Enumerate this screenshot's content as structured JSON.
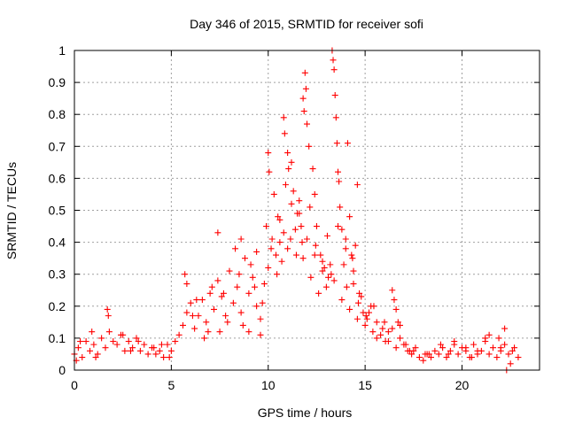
{
  "chart_data": {
    "type": "scatter",
    "title": "Day 346 of 2015, SRMTID for receiver sofi",
    "xlabel": "GPS time / hours",
    "ylabel": "SRMTID / TECUs",
    "xlim": [
      0,
      24
    ],
    "ylim": [
      0,
      1
    ],
    "xticks": [
      0,
      5,
      10,
      15,
      20
    ],
    "xtick_labels": [
      "0",
      "5",
      "10",
      "15",
      "20"
    ],
    "yticks": [
      0,
      0.1,
      0.2,
      0.3,
      0.4,
      0.5,
      0.6,
      0.7,
      0.8,
      0.9,
      1
    ],
    "ytick_labels": [
      "0",
      "0.1",
      "0.2",
      "0.3",
      "0.4",
      "0.5",
      "0.6",
      "0.7",
      "0.8",
      "0.9",
      "1"
    ],
    "grid": true,
    "marker": "+",
    "series": [
      {
        "name": "SRMTID",
        "color": "#ff0000",
        "x": [
          0.0,
          0.2,
          0.4,
          0.6,
          0.8,
          1.0,
          1.2,
          1.4,
          1.6,
          1.8,
          2.0,
          2.2,
          2.4,
          2.6,
          2.8,
          3.0,
          3.2,
          3.4,
          3.6,
          3.8,
          4.0,
          4.2,
          4.4,
          4.6,
          4.8,
          5.0,
          5.2,
          5.4,
          5.6,
          5.8,
          6.0,
          6.2,
          6.4,
          6.6,
          6.8,
          7.0,
          7.2,
          7.4,
          7.6,
          7.8,
          8.0,
          8.2,
          8.4,
          8.6,
          8.8,
          9.0,
          9.2,
          9.4,
          9.6,
          9.8,
          10.0,
          10.2,
          10.4,
          10.6,
          10.8,
          11.0,
          11.2,
          11.4,
          11.6,
          11.8,
          12.0,
          12.2,
          12.4,
          12.6,
          12.8,
          13.0,
          13.2,
          13.4,
          13.6,
          13.8,
          14.0,
          14.2,
          14.4,
          14.6,
          14.8,
          15.0,
          15.2,
          15.4,
          15.6,
          15.8,
          16.0,
          16.2,
          16.4,
          16.6,
          16.8,
          17.0,
          17.2,
          17.4,
          17.6,
          17.8,
          18.0,
          18.2,
          18.4,
          18.6,
          18.8,
          19.0,
          19.2,
          19.4,
          19.6,
          19.8,
          20.0,
          20.2,
          20.4,
          20.6,
          20.8,
          21.0,
          21.2,
          21.4,
          21.6,
          21.8,
          22.0,
          22.2,
          22.4,
          22.6,
          0.1,
          0.9,
          1.7,
          1.75,
          2.5,
          3.3,
          4.1,
          4.9,
          5.7,
          5.8,
          6.3,
          6.7,
          7.1,
          7.4,
          7.5,
          7.9,
          8.3,
          8.6,
          8.7,
          9.0,
          9.1,
          9.4,
          9.6,
          9.9,
          10.0,
          10.05,
          10.3,
          10.5,
          10.6,
          10.8,
          10.85,
          10.9,
          11.0,
          11.05,
          11.2,
          11.3,
          11.5,
          11.6,
          11.7,
          11.75,
          11.8,
          11.85,
          11.9,
          11.95,
          12.0,
          12.1,
          12.3,
          12.4,
          12.5,
          12.7,
          12.9,
          13.1,
          13.3,
          13.35,
          13.4,
          13.45,
          13.5,
          13.55,
          13.6,
          13.7,
          13.8,
          13.9,
          14.0,
          14.1,
          14.2,
          14.3,
          14.4,
          14.5,
          14.6,
          14.7,
          14.9,
          15.1,
          15.3,
          15.6,
          15.9,
          16.2,
          16.4,
          16.5,
          16.6,
          16.8,
          17.1,
          17.5,
          18.3,
          18.9,
          19.6,
          20.2,
          20.8,
          21.4,
          21.9,
          22.2,
          22.3,
          22.5,
          22.7,
          22.9,
          0.3,
          1.1,
          2.9,
          4.5,
          6.1,
          6.9,
          7.7,
          8.5,
          9.3,
          9.7,
          10.15,
          10.45,
          10.7,
          11.15,
          11.45,
          12.15,
          12.45,
          12.8,
          13.05,
          13.25,
          13.65,
          14.05,
          14.35,
          14.65,
          15.05,
          15.45,
          16.05,
          16.7,
          17.3,
          18.1,
          19.3,
          20.5,
          21.2,
          22.0
        ],
        "y": [
          0.05,
          0.07,
          0.04,
          0.09,
          0.06,
          0.08,
          0.05,
          0.1,
          0.07,
          0.12,
          0.09,
          0.08,
          0.11,
          0.06,
          0.09,
          0.07,
          0.1,
          0.06,
          0.08,
          0.05,
          0.07,
          0.05,
          0.06,
          0.04,
          0.08,
          0.06,
          0.09,
          0.11,
          0.14,
          0.18,
          0.21,
          0.13,
          0.17,
          0.22,
          0.15,
          0.24,
          0.19,
          0.28,
          0.23,
          0.17,
          0.31,
          0.21,
          0.26,
          0.18,
          0.35,
          0.24,
          0.29,
          0.2,
          0.16,
          0.27,
          0.32,
          0.41,
          0.36,
          0.47,
          0.43,
          0.38,
          0.52,
          0.44,
          0.49,
          0.35,
          0.41,
          0.29,
          0.36,
          0.24,
          0.31,
          0.26,
          0.33,
          0.28,
          0.45,
          0.22,
          0.38,
          0.19,
          0.27,
          0.16,
          0.23,
          0.14,
          0.18,
          0.12,
          0.1,
          0.11,
          0.15,
          0.09,
          0.13,
          0.07,
          0.1,
          0.08,
          0.06,
          0.05,
          0.07,
          0.04,
          0.03,
          0.05,
          0.04,
          0.06,
          0.05,
          0.07,
          0.04,
          0.06,
          0.08,
          0.05,
          0.07,
          0.06,
          0.04,
          0.08,
          0.05,
          0.06,
          0.09,
          0.05,
          0.07,
          0.04,
          0.06,
          0.08,
          0.05,
          0.06,
          0.03,
          0.12,
          0.19,
          0.17,
          0.11,
          0.09,
          0.07,
          0.04,
          0.3,
          0.27,
          0.22,
          0.1,
          0.26,
          0.43,
          0.12,
          0.15,
          0.38,
          0.41,
          0.14,
          0.12,
          0.33,
          0.37,
          0.11,
          0.45,
          0.68,
          0.62,
          0.55,
          0.48,
          0.4,
          0.79,
          0.74,
          0.58,
          0.68,
          0.63,
          0.65,
          0.56,
          0.49,
          0.53,
          0.45,
          0.4,
          0.85,
          0.81,
          0.93,
          0.88,
          0.77,
          0.7,
          0.63,
          0.55,
          0.45,
          0.36,
          0.32,
          0.29,
          1.0,
          0.97,
          0.94,
          0.86,
          0.79,
          0.71,
          0.62,
          0.51,
          0.44,
          0.33,
          0.41,
          0.71,
          0.48,
          0.36,
          0.31,
          0.39,
          0.58,
          0.24,
          0.18,
          0.16,
          0.2,
          0.15,
          0.13,
          0.12,
          0.25,
          0.22,
          0.19,
          0.14,
          0.08,
          0.06,
          0.05,
          0.08,
          0.09,
          0.07,
          0.06,
          0.11,
          0.1,
          0.13,
          0.0,
          0.02,
          0.07,
          0.04,
          0.09,
          0.04,
          0.06,
          0.08,
          0.17,
          0.12,
          0.24,
          0.3,
          0.26,
          0.21,
          0.38,
          0.3,
          0.34,
          0.41,
          0.36,
          0.51,
          0.39,
          0.34,
          0.42,
          0.3,
          0.59,
          0.26,
          0.35,
          0.21,
          0.17,
          0.2,
          0.09,
          0.15,
          0.06,
          0.05,
          0.05,
          0.04,
          0.1,
          0.07
        ]
      }
    ]
  }
}
